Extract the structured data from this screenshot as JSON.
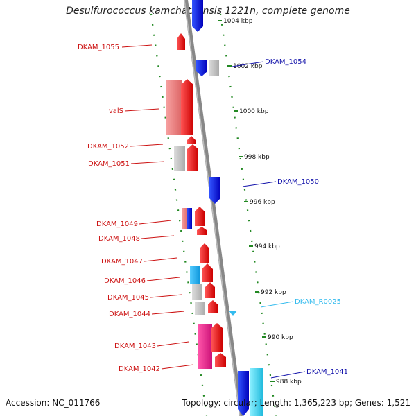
{
  "title": "Desulfurococcus kamchatkensis 1221n, complete genome",
  "accession": "Accession: NC_011766",
  "summary": "Topology: circular; Length: 1,365,223 bp; Genes: 1,521",
  "colors": {
    "forward": "#ee1111",
    "forward_light": "#ee8888",
    "reverse": "#1111dd",
    "pseudo": "#bbbbbb",
    "rna": "#33bbee",
    "rna_light": "#22eeee",
    "magenta": "#ee2288",
    "backbone": "#888888",
    "tick": "#228822",
    "label_red": "#cc1111",
    "label_blue": "#1111aa",
    "label_cyan": "#33bbee"
  },
  "chart_data": {
    "type": "genome-map",
    "ticks": [
      {
        "label": "1004 kbp",
        "kb": 1004
      },
      {
        "label": "1002 kbp",
        "kb": 1002
      },
      {
        "label": "1000 kbp",
        "kb": 1000
      },
      {
        "label": "998 kbp",
        "kb": 998
      },
      {
        "label": "996 kbp",
        "kb": 996
      },
      {
        "label": "994 kbp",
        "kb": 994
      },
      {
        "label": "992 kbp",
        "kb": 992
      },
      {
        "label": "990 kbp",
        "kb": 990
      },
      {
        "label": "988 kbp",
        "kb": 988
      }
    ],
    "labels": [
      {
        "text": "DKAM_1055",
        "side": "left",
        "color": "label_red"
      },
      {
        "text": "DKAM_1054",
        "side": "right",
        "color": "label_blue"
      },
      {
        "text": "valS",
        "side": "left",
        "color": "label_red"
      },
      {
        "text": "DKAM_1052",
        "side": "left",
        "color": "label_red"
      },
      {
        "text": "DKAM_1051",
        "side": "left",
        "color": "label_red"
      },
      {
        "text": "DKAM_1050",
        "side": "right",
        "color": "label_blue"
      },
      {
        "text": "DKAM_1049",
        "side": "left",
        "color": "label_red"
      },
      {
        "text": "DKAM_1048",
        "side": "left",
        "color": "label_red"
      },
      {
        "text": "DKAM_1047",
        "side": "left",
        "color": "label_red"
      },
      {
        "text": "DKAM_1046",
        "side": "left",
        "color": "label_red"
      },
      {
        "text": "DKAM_1045",
        "side": "left",
        "color": "label_red"
      },
      {
        "text": "DKAM_1044",
        "side": "left",
        "color": "label_red"
      },
      {
        "text": "DKAM_R0025",
        "side": "right",
        "color": "label_cyan"
      },
      {
        "text": "DKAM_1043",
        "side": "left",
        "color": "label_red"
      },
      {
        "text": "DKAM_1042",
        "side": "left",
        "color": "label_red"
      },
      {
        "text": "DKAM_1041",
        "side": "right",
        "color": "label_blue"
      }
    ]
  }
}
